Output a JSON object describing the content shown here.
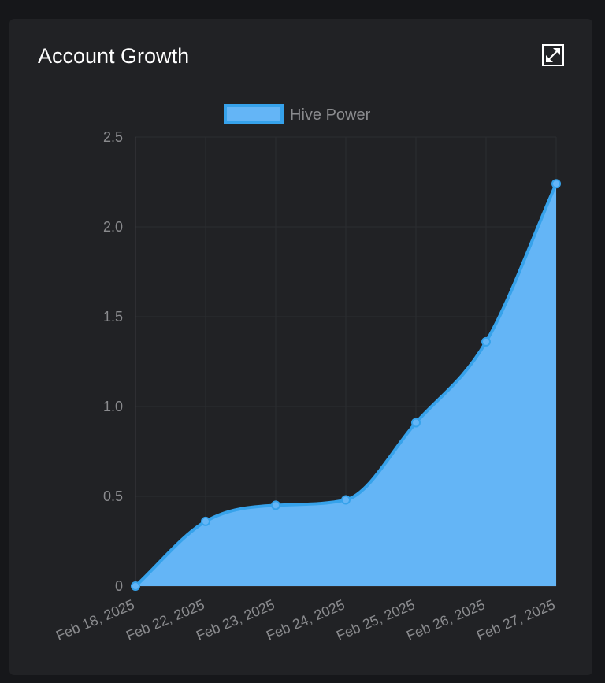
{
  "card": {
    "title": "Account Growth",
    "expand_icon": "expand-icon"
  },
  "chart_data": {
    "type": "area",
    "categories": [
      "Feb 18, 2025",
      "Feb 22, 2025",
      "Feb 23, 2025",
      "Feb 24, 2025",
      "Feb 25, 2025",
      "Feb 26, 2025",
      "Feb 27, 2025"
    ],
    "series": [
      {
        "name": "Hive Power",
        "values": [
          0,
          0.36,
          0.45,
          0.48,
          0.91,
          1.36,
          2.24
        ]
      }
    ],
    "ylim": [
      0,
      2.5
    ],
    "yticks": [
      0,
      0.5,
      1.0,
      1.5,
      2.0,
      2.5
    ],
    "ytick_labels": [
      "0",
      "0.5",
      "1.0",
      "1.5",
      "2.0",
      "2.5"
    ],
    "grid": true,
    "legend_position": "top-center",
    "colors": {
      "line": "#36a2eb",
      "fill": "#64b5f6",
      "grid": "#2c2d31",
      "tick_text": "#8a8b8e"
    }
  }
}
